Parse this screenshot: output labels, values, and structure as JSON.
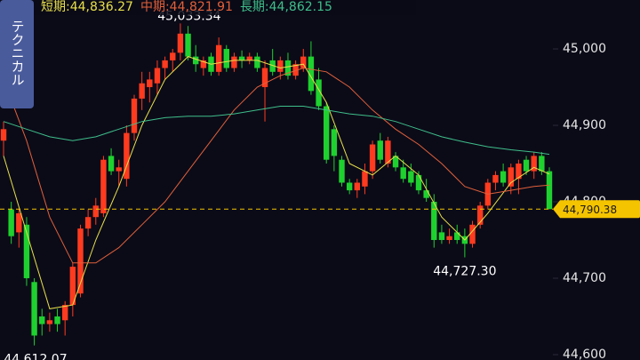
{
  "chart_data": {
    "type": "candlestick",
    "side_tab": "テクニカル",
    "ylim": [
      44593,
      45064
    ],
    "yticks": [
      {
        "value": 44600,
        "label": "44,600"
      },
      {
        "value": 44700,
        "label": "44,700"
      },
      {
        "value": 44800,
        "label": "44,800"
      },
      {
        "value": 44900,
        "label": "44,900"
      },
      {
        "value": 45000,
        "label": "45,000"
      }
    ],
    "up_color": "#ff3b1f",
    "down_color": "#1fd12f",
    "open": [
      44880,
      44790,
      44760,
      44770,
      44695,
      44650,
      44640,
      44650,
      44645,
      44665,
      44680,
      44765,
      44780,
      44785,
      44860,
      44840,
      44830,
      44890,
      44935,
      44950,
      44955,
      44975,
      44985,
      44995,
      45020,
      44990,
      44975,
      44990,
      44970,
      45000,
      44975,
      44990,
      44985,
      44990,
      44950,
      44985,
      44970,
      44985,
      44965,
      44975,
      44990,
      44960,
      44925,
      44895,
      44855,
      44825,
      44815,
      44820,
      44840,
      44880,
      44850,
      44860,
      44845,
      44840,
      44835,
      44815,
      44800,
      44760,
      44750,
      44760,
      44755,
      44745,
      44770,
      44795,
      44825,
      44840,
      44820,
      44830,
      44855,
      44840,
      44860,
      44840
    ],
    "high": [
      44905,
      44800,
      44790,
      44780,
      44700,
      44660,
      44655,
      44660,
      44670,
      44720,
      44770,
      44790,
      44805,
      44860,
      44870,
      44855,
      44900,
      44940,
      44970,
      44970,
      44985,
      44990,
      45000,
      45033.34,
      45030,
      45005,
      44990,
      44995,
      45015,
      45005,
      44995,
      44998,
      44995,
      44995,
      44985,
      45000,
      44990,
      44995,
      44985,
      45000,
      45010,
      44975,
      44930,
      44900,
      44860,
      44830,
      44830,
      44850,
      44880,
      44890,
      44885,
      44865,
      44855,
      44850,
      44840,
      44830,
      44810,
      44770,
      44765,
      44770,
      44765,
      44775,
      44800,
      44830,
      44840,
      44850,
      44850,
      44855,
      44860,
      44865,
      44865,
      44845
    ],
    "low": [
      44860,
      44745,
      44740,
      44690,
      44612.07,
      44625,
      44630,
      44630,
      44625,
      44650,
      44675,
      44755,
      44770,
      44780,
      44835,
      44820,
      44820,
      44880,
      44920,
      44930,
      44940,
      44960,
      44970,
      44985,
      44985,
      44970,
      44965,
      44965,
      44965,
      44970,
      44970,
      44975,
      44980,
      44970,
      44905,
      44965,
      44960,
      44960,
      44960,
      44970,
      44940,
      44920,
      44850,
      44840,
      44820,
      44810,
      44805,
      44810,
      44830,
      44850,
      44845,
      44840,
      44825,
      44820,
      44810,
      44800,
      44740,
      44745,
      44745,
      44745,
      44727.3,
      44740,
      44765,
      44790,
      44815,
      44820,
      44810,
      44810,
      44835,
      44830,
      44835,
      44790.38
    ],
    "close": [
      44895,
      44755,
      44785,
      44700,
      44625,
      44640,
      44645,
      44640,
      44665,
      44715,
      44765,
      44780,
      44795,
      44855,
      44840,
      44845,
      44890,
      44935,
      44955,
      44960,
      44975,
      44985,
      44995,
      45020,
      44990,
      44980,
      44985,
      44970,
      45005,
      44975,
      44990,
      44985,
      44990,
      44975,
      44975,
      44970,
      44985,
      44965,
      44980,
      44990,
      44945,
      44925,
      44855,
      44860,
      44825,
      44815,
      44825,
      44840,
      44875,
      44855,
      44880,
      44845,
      44830,
      44825,
      44815,
      44805,
      44750,
      44750,
      44755,
      44750,
      44745,
      44770,
      44795,
      44825,
      44835,
      44825,
      44845,
      44850,
      44840,
      44860,
      44840,
      44790.38
    ],
    "series": [
      {
        "name": "短期:44,836.27",
        "color": "#e8e04a",
        "x": [
          0,
          3,
          6,
          9,
          12,
          15,
          18,
          21,
          24,
          27,
          30,
          33,
          36,
          39,
          42,
          45,
          48,
          51,
          54,
          57,
          60,
          63,
          66,
          69,
          71
        ],
        "values": [
          44860,
          44760,
          44660,
          44665,
          44750,
          44820,
          44900,
          44960,
          44990,
          44980,
          44985,
          44985,
          44975,
          44980,
          44930,
          44850,
          44835,
          44860,
          44835,
          44780,
          44750,
          44785,
          44825,
          44845,
          44836.27
        ]
      },
      {
        "name": "中期:44,821.91",
        "color": "#e0603a",
        "x": [
          0,
          3,
          6,
          9,
          12,
          15,
          18,
          21,
          24,
          27,
          30,
          33,
          36,
          39,
          42,
          45,
          48,
          51,
          54,
          57,
          60,
          63,
          66,
          69,
          71
        ],
        "values": [
          44960,
          44880,
          44780,
          44720,
          44720,
          44740,
          44770,
          44800,
          44840,
          44880,
          44920,
          44950,
          44965,
          44975,
          44970,
          44950,
          44920,
          44895,
          44875,
          44850,
          44820,
          44810,
          44815,
          44820,
          44821.91
        ]
      },
      {
        "name": "長期:44,862.15",
        "color": "#3fbf8a",
        "x": [
          0,
          3,
          6,
          9,
          12,
          15,
          18,
          21,
          24,
          27,
          30,
          33,
          36,
          39,
          42,
          45,
          48,
          51,
          54,
          57,
          60,
          63,
          66,
          69,
          71
        ],
        "values": [
          44905,
          44895,
          44885,
          44880,
          44885,
          44895,
          44905,
          44910,
          44912,
          44912,
          44915,
          44920,
          44925,
          44925,
          44920,
          44915,
          44912,
          44905,
          44895,
          44885,
          44878,
          44872,
          44868,
          44865,
          44862.15
        ]
      }
    ],
    "high_labels": [
      {
        "value": 45033.34,
        "label": "45,033.34"
      }
    ],
    "low_labels": [
      {
        "value": 44727.3,
        "label": "44,727.30"
      },
      {
        "value": 44612.07,
        "label": "44,612.07"
      }
    ],
    "last_price": {
      "value": 44790.38,
      "label": "44,790.38",
      "color": "#f5c400"
    }
  }
}
